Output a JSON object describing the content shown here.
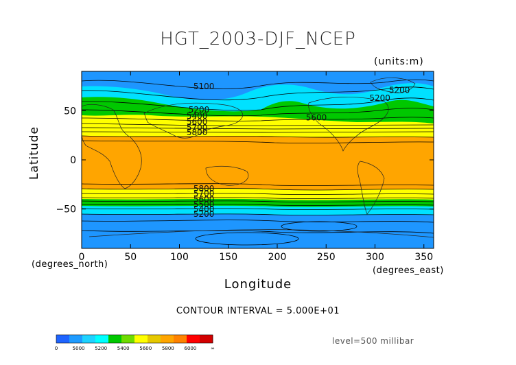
{
  "title": "HGT_2003-DJF_NCEP",
  "units_note": "(units:m)",
  "axes": {
    "xlabel": "Longitude",
    "ylabel": "Latitude",
    "x_note_left": "(degrees_north)",
    "x_note_right": "(degrees_east)",
    "x_ticks": [
      "0",
      "50",
      "100",
      "150",
      "200",
      "250",
      "300",
      "350"
    ],
    "y_ticks": [
      "50",
      "0",
      "−50"
    ],
    "xlim": [
      0,
      360
    ],
    "ylim": [
      -90,
      90
    ]
  },
  "contour_interval": "CONTOUR INTERVAL = 5.000E+01",
  "level": "level=500 millibar",
  "contour_labels": [
    {
      "text": "5100",
      "lon": 125,
      "lat": 72
    },
    {
      "text": "5200",
      "lon": 325,
      "lat": 68
    },
    {
      "text": "5200",
      "lon": 305,
      "lat": 60
    },
    {
      "text": "5600",
      "lon": 240,
      "lat": 40
    },
    {
      "text": "5200",
      "lon": 120,
      "lat": 48
    },
    {
      "text": "5400",
      "lon": 118,
      "lat": 42
    },
    {
      "text": "5600",
      "lon": 118,
      "lat": 36
    },
    {
      "text": "5700",
      "lon": 118,
      "lat": 30
    },
    {
      "text": "5800",
      "lon": 118,
      "lat": 25
    },
    {
      "text": "5800",
      "lon": 125,
      "lat": -32
    },
    {
      "text": "5700",
      "lon": 125,
      "lat": -37
    },
    {
      "text": "5600",
      "lon": 125,
      "lat": -43
    },
    {
      "text": "5500",
      "lon": 125,
      "lat": -48
    },
    {
      "text": "5400",
      "lon": 125,
      "lat": -53
    },
    {
      "text": "5200",
      "lon": 125,
      "lat": -58
    }
  ],
  "colorbar": {
    "labels": [
      "0",
      "5000",
      "5200",
      "5400",
      "5600",
      "5800",
      "6000",
      "∞"
    ],
    "colors": [
      "#1e64ff",
      "#1e9bff",
      "#1ed2ff",
      "#00ffff",
      "#00c800",
      "#6edc00",
      "#ffff00",
      "#e6c800",
      "#ffa500",
      "#ff8200",
      "#ff0000",
      "#d20000"
    ]
  },
  "colors": {
    "blue_dark": "#1e96ff",
    "cyan": "#00e1ff",
    "green": "#00c800",
    "yellow": "#ffff00",
    "orange": "#ffa500"
  }
}
